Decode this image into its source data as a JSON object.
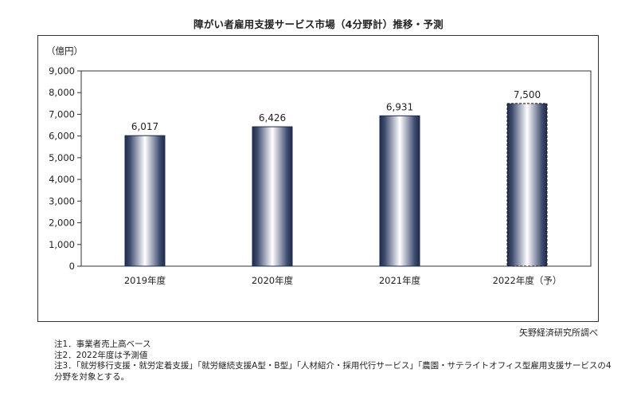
{
  "title": "障がい者雇用支援サービス市場（4分野計）推移・予測",
  "source": "矢野経済研究所調べ",
  "notes": [
    "注1．事業者売上高ベース",
    "注2．2022年度は予測値",
    "注3．「就労移行支援・就労定着支援」「就労継続支援A型・B型」「人材紹介・採用代行サービス」「農園・サテライトオフィス型雇用支援サービスの4分野を対象とする。"
  ],
  "chart_data": {
    "type": "bar",
    "title": "障がい者雇用支援サービス市場（4分野計）推移・予測",
    "unit_label": "（億円）",
    "categories": [
      "2019年度",
      "2020年度",
      "2021年度",
      "2022年度（予）"
    ],
    "values": [
      6017,
      6426,
      6931,
      7500
    ],
    "value_labels": [
      "6,017",
      "6,426",
      "6,931",
      "7,500"
    ],
    "forecast": [
      false,
      false,
      false,
      true
    ],
    "ylim": [
      0,
      9000
    ],
    "yticks": [
      0,
      1000,
      2000,
      3000,
      4000,
      5000,
      6000,
      7000,
      8000,
      9000
    ],
    "ytick_labels": [
      "0",
      "1,000",
      "2,000",
      "3,000",
      "4,000",
      "5,000",
      "6,000",
      "7,000",
      "8,000",
      "9,000"
    ],
    "grid": false,
    "legend": "none",
    "colors": {
      "bar_dark": "#1f2b4a",
      "bar_light": "#ffffff",
      "axis": "#333333"
    }
  }
}
